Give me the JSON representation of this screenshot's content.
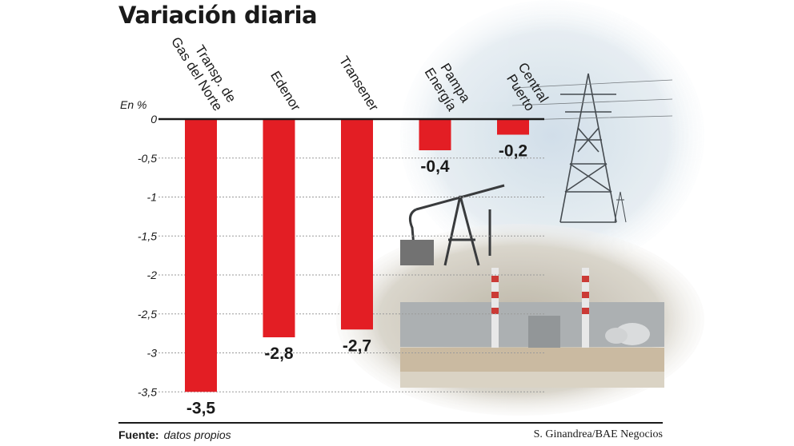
{
  "title": "Variación diaria",
  "source_label": "Fuente:",
  "source_value": "datos propios",
  "credit": "S. Ginandrea/BAE Negocios",
  "colors": {
    "bar": "#e31e24",
    "axis": "#1a1a1a",
    "grid": "#9a9a9a"
  },
  "background_image": "industrial-energy-photo",
  "chart_data": {
    "type": "bar",
    "ylabel": "En %",
    "ylim": [
      -3.5,
      0
    ],
    "yticks": [
      0,
      -0.5,
      -1,
      -1.5,
      -2,
      -2.5,
      -3,
      -3.5
    ],
    "ytick_labels": [
      "0",
      "-0,5",
      "-1",
      "-1,5",
      "-2",
      "-2,5",
      "-3",
      "-3,5"
    ],
    "grid": true,
    "categories": [
      [
        "Transp. de",
        "Gas del Norte"
      ],
      [
        "Edenor"
      ],
      [
        "Transener"
      ],
      [
        "Pampa",
        "Energía"
      ],
      [
        "Central",
        "Puerto"
      ]
    ],
    "values": [
      -3.5,
      -2.8,
      -2.7,
      -0.4,
      -0.2
    ],
    "value_labels": [
      "-3,5",
      "-2,8",
      "-2,7",
      "-0,4",
      "-0,2"
    ]
  }
}
